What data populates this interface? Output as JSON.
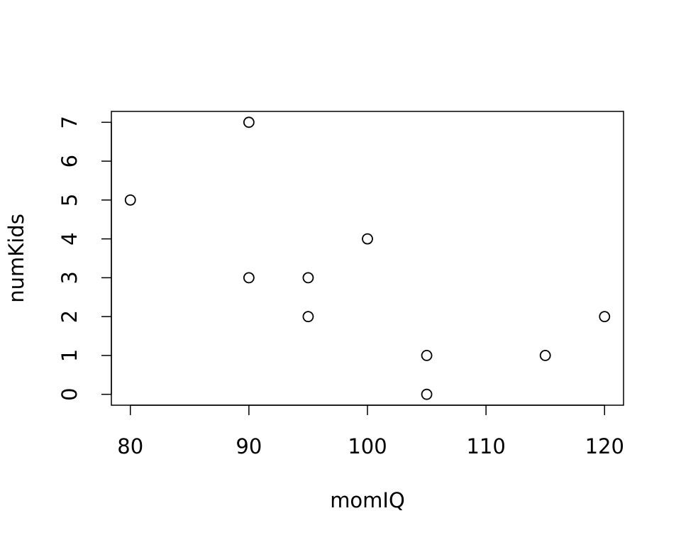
{
  "chart_data": {
    "type": "scatter",
    "x_label": "momIQ",
    "y_label": "numKids",
    "x": [
      90,
      80,
      100,
      90,
      95,
      95,
      120,
      105,
      115,
      105
    ],
    "values": [
      7,
      5,
      4,
      3,
      3,
      2,
      2,
      1,
      1,
      0
    ],
    "color": "#000000",
    "xlim": [
      78.4,
      121.6
    ],
    "xticks": [
      80,
      90,
      100,
      110,
      120
    ],
    "ylim": [
      -0.28,
      7.28
    ],
    "yticks": [
      0,
      1,
      2,
      3,
      4,
      5,
      6,
      7
    ],
    "grid": false
  }
}
